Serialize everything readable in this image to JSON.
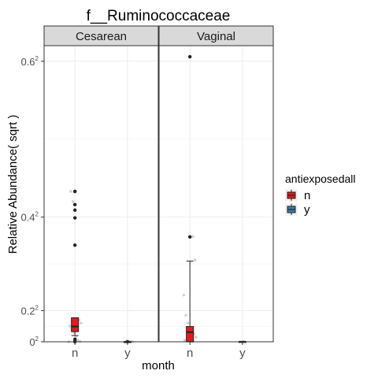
{
  "chart_data": {
    "type": "box",
    "title": "f__Ruminococcaceae",
    "xlabel": "month",
    "ylabel": "Relative Abundance( sqrt )",
    "y_scale": "sqrt",
    "ylim": [
      0,
      0.38
    ],
    "y_ticks": [
      0,
      0.04,
      0.16,
      0.36
    ],
    "y_tick_labels": [
      {
        "base": "0",
        "exp": "2"
      },
      {
        "base": "0.2",
        "exp": "2"
      },
      {
        "base": "0.4",
        "exp": "2"
      },
      {
        "base": "0.6",
        "exp": "2"
      }
    ],
    "categories": [
      "n",
      "y"
    ],
    "panels": [
      "Cesarean",
      "Vaginal"
    ],
    "legend": {
      "title": "antiexposedall",
      "position": "right",
      "items": [
        {
          "label": "n",
          "color": "#E41A1C"
        },
        {
          "label": "y",
          "color": "#377EB8"
        }
      ]
    },
    "grid": true,
    "boxes": [
      {
        "panel": "Cesarean",
        "category": "n",
        "series": "n",
        "whisker_low": 0.008,
        "q1": 0.013,
        "median": 0.0196,
        "q3": 0.0308,
        "whisker_high": 0.0308,
        "outliers": [
          0.0,
          0.0006,
          0.0032,
          0.124,
          0.159,
          0.169,
          0.176,
          0.193,
          0.193
        ]
      },
      {
        "panel": "Cesarean",
        "category": "y",
        "series": "n",
        "whisker_low": 0.0,
        "q1": 0.0,
        "median": 0.0,
        "q3": 0.0,
        "whisker_high": 0.0,
        "outliers": [
          0.0001
        ]
      },
      {
        "panel": "Vaginal",
        "category": "n",
        "series": "n",
        "whisker_low": 0.0,
        "q1": 0.0004,
        "median": 0.0123,
        "q3": 0.0196,
        "whisker_high": 0.1035,
        "outliers": [
          0.1346,
          0.3658
        ]
      },
      {
        "panel": "Vaginal",
        "category": "y",
        "series": "n",
        "whisker_low": 0.0001,
        "q1": 0.0001,
        "median": 0.0001,
        "q3": 0.0001,
        "whisker_high": 0.0001,
        "outliers": []
      }
    ],
    "jitter_points": [
      {
        "panel": "Cesarean",
        "category": "n",
        "values": [
          0.0,
          0.0004,
          0.002,
          0.006,
          0.012,
          0.016,
          0.02,
          0.024,
          0.028,
          0.03,
          0.124,
          0.18,
          0.193
        ]
      },
      {
        "panel": "Cesarean",
        "category": "y",
        "values": [
          0.0,
          0.0,
          0.0001,
          0.0001
        ]
      },
      {
        "panel": "Vaginal",
        "category": "n",
        "values": [
          0.0,
          0.0,
          0.0004,
          0.0006,
          0.002,
          0.006,
          0.01,
          0.014,
          0.018,
          0.024,
          0.034,
          0.06,
          0.105,
          0.135
        ]
      },
      {
        "panel": "Vaginal",
        "category": "y",
        "values": [
          0.0001
        ]
      }
    ]
  }
}
